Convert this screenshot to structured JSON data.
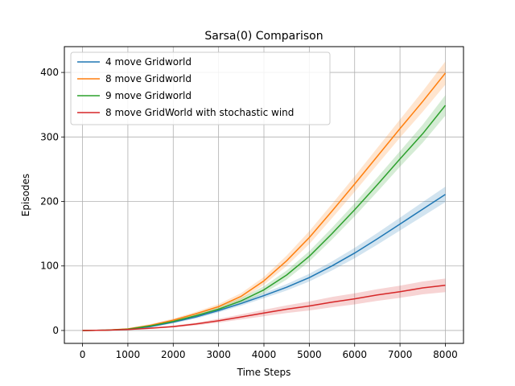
{
  "chart_data": {
    "type": "line",
    "title": "Sarsa(0) Comparison",
    "xlabel": "Time Steps",
    "ylabel": "Episodes",
    "xlim": [
      -400,
      8400
    ],
    "ylim": [
      -20,
      440
    ],
    "xticks": [
      0,
      1000,
      2000,
      3000,
      4000,
      5000,
      6000,
      7000,
      8000
    ],
    "yticks": [
      0,
      100,
      200,
      300,
      400
    ],
    "grid": true,
    "legend_position": "top-left",
    "x": [
      0,
      500,
      1000,
      1500,
      2000,
      2500,
      3000,
      3500,
      4000,
      4500,
      5000,
      5500,
      6000,
      6500,
      7000,
      7500,
      8000
    ],
    "series": [
      {
        "name": "4 move Gridworld",
        "color": "#1f77b4",
        "values": [
          0,
          0.5,
          2,
          6,
          13,
          21,
          31,
          42,
          54,
          67,
          82,
          100,
          120,
          142,
          165,
          188,
          211
        ],
        "band": [
          0,
          0.3,
          0.8,
          1.5,
          2,
          2.5,
          3,
          3.5,
          4,
          5,
          6,
          7,
          8,
          9,
          10,
          11,
          12
        ]
      },
      {
        "name": "8 move Gridworld",
        "color": "#ff7f0e",
        "values": [
          0,
          0.5,
          2.5,
          8,
          16,
          26,
          37,
          53,
          77,
          108,
          144,
          185,
          227,
          270,
          313,
          355,
          399
        ],
        "band": [
          0,
          0.3,
          1,
          2,
          2.5,
          3,
          4,
          5,
          6,
          8,
          10,
          11,
          12,
          13,
          14,
          16,
          18
        ]
      },
      {
        "name": "9 move Gridworld",
        "color": "#2ca02c",
        "values": [
          0,
          0.5,
          2,
          7,
          14,
          23,
          33,
          46,
          63,
          86,
          115,
          150,
          187,
          226,
          266,
          305,
          349
        ],
        "band": [
          0,
          0.3,
          1,
          1.8,
          2.5,
          3,
          3.5,
          4.5,
          5.5,
          7,
          8,
          9,
          10,
          11,
          12,
          14,
          16
        ]
      },
      {
        "name": "8 move GridWorld with stochastic wind",
        "color": "#d62728",
        "values": [
          0,
          0.5,
          1.5,
          3.5,
          6,
          10,
          15,
          21,
          27,
          33,
          38,
          44,
          49,
          55,
          60,
          66,
          70
        ],
        "band": [
          0,
          0.3,
          0.6,
          1,
          1.5,
          2,
          3,
          4,
          5,
          6,
          7,
          8,
          8.5,
          9,
          9.5,
          10,
          10.5
        ]
      }
    ]
  }
}
